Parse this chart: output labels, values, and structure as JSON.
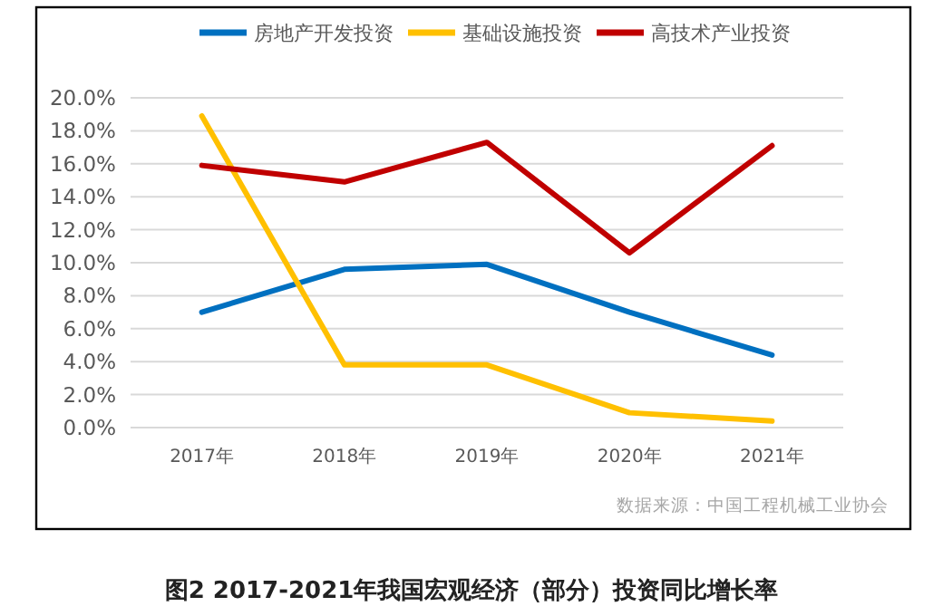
{
  "chart_data": {
    "type": "line",
    "title": "图2  2017-2021年我国宏观经济（部分）投资同比增长率",
    "categories": [
      "2017年",
      "2018年",
      "2019年",
      "2020年",
      "2021年"
    ],
    "series": [
      {
        "name": "房地产开发投资",
        "color": "#0070c0",
        "values": [
          7.0,
          9.6,
          9.9,
          7.0,
          4.4
        ]
      },
      {
        "name": "基础设施投资",
        "color": "#ffc000",
        "values": [
          18.9,
          3.8,
          3.8,
          0.9,
          0.4
        ]
      },
      {
        "name": "高技术产业投资",
        "color": "#c00000",
        "values": [
          15.9,
          14.9,
          17.3,
          10.6,
          17.1
        ]
      }
    ],
    "ylim": [
      0,
      20
    ],
    "yticks": [
      {
        "value": 0,
        "label": "0.0%"
      },
      {
        "value": 2,
        "label": "2.0%"
      },
      {
        "value": 4,
        "label": "4.0%"
      },
      {
        "value": 6,
        "label": "6.0%"
      },
      {
        "value": 8,
        "label": "8.0%"
      },
      {
        "value": 10,
        "label": "10.0%"
      },
      {
        "value": 12,
        "label": "12.0%"
      },
      {
        "value": 14,
        "label": "14.0%"
      },
      {
        "value": 16,
        "label": "16.0%"
      },
      {
        "value": 18,
        "label": "18.0%"
      },
      {
        "value": 20,
        "label": "20.0%"
      }
    ],
    "grid": "y",
    "legend": "top",
    "marker": "none",
    "line_style": "solid",
    "annotations": [
      "数据来源：中国工程机械工业协会"
    ]
  }
}
